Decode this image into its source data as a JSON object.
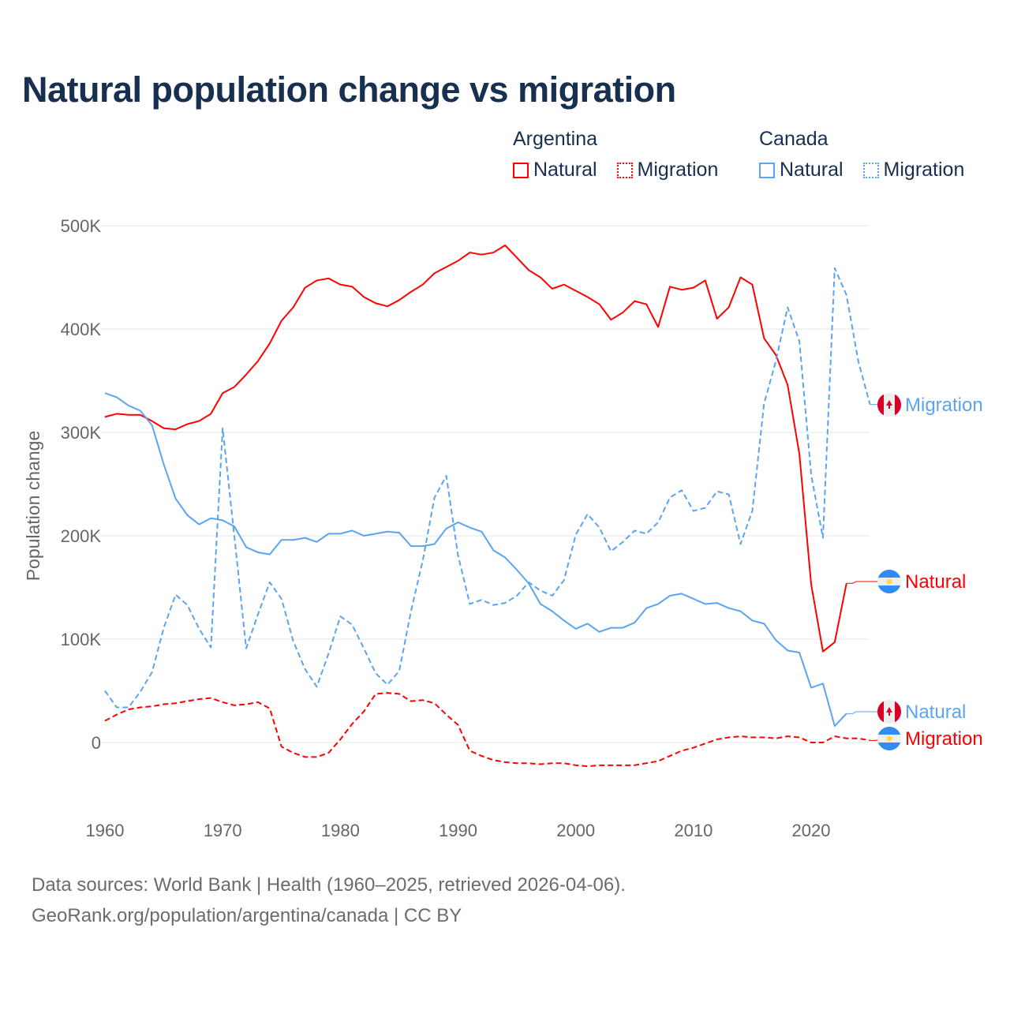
{
  "title": "Natural population change vs migration",
  "legend": {
    "groups": [
      {
        "name": "Argentina",
        "items": [
          {
            "label": "Natural",
            "style": "solid"
          },
          {
            "label": "Migration",
            "style": "dotted"
          }
        ],
        "color": "#ff0000"
      },
      {
        "name": "Canada",
        "items": [
          {
            "label": "Natural",
            "style": "solid"
          },
          {
            "label": "Migration",
            "style": "dotted"
          }
        ],
        "color": "#5ba4f0"
      }
    ]
  },
  "footer": {
    "line1": "Data sources: World Bank | Health (1960–2025, retrieved 2026-04-06).",
    "line2": "GeoRank.org/population/argentina/canada | CC BY"
  },
  "chart_data": {
    "type": "line",
    "title": "Natural population change vs migration",
    "xlabel": "",
    "ylabel": "Population change",
    "xlim": [
      1960,
      2025
    ],
    "ylim": [
      -60000,
      500000
    ],
    "xticks": [
      1960,
      1970,
      1980,
      1990,
      2000,
      2010,
      2020
    ],
    "yticks": [
      0,
      100000,
      200000,
      300000,
      400000,
      500000
    ],
    "ytick_labels": [
      "0",
      "100K",
      "200K",
      "300K",
      "400K",
      "500K"
    ],
    "grid": true,
    "x_start": 1960,
    "series": [
      {
        "name": "Argentina Natural",
        "country": "Argentina",
        "end_label": "Natural",
        "color": "#ff0000",
        "dash": false,
        "flag": "argentina-flag",
        "values": [
          315,
          318,
          317,
          317,
          311,
          304,
          303,
          308,
          311,
          318,
          338,
          344,
          356,
          369,
          386,
          408,
          421,
          440,
          447,
          449,
          443,
          441,
          431,
          425,
          422,
          428,
          436,
          443,
          454,
          460,
          466,
          474,
          472,
          474,
          481,
          469,
          457,
          450,
          439,
          443,
          437,
          431,
          424,
          409,
          416,
          427,
          424,
          402,
          441,
          438,
          440,
          447,
          410,
          421,
          450,
          443,
          391,
          375,
          346,
          279,
          153,
          88,
          97,
          154
        ]
      },
      {
        "name": "Argentina Migration",
        "country": "Argentina",
        "end_label": "Migration",
        "color": "#ff0000",
        "dash": true,
        "flag": "argentina-flag",
        "values": [
          21,
          27,
          32,
          34,
          35,
          37,
          38,
          40,
          42,
          43,
          39,
          36,
          37,
          39,
          33,
          -4,
          -10,
          -14,
          -14,
          -10,
          3,
          18,
          30,
          47,
          48,
          47,
          40,
          41,
          38,
          27,
          17,
          -8,
          -13,
          -17,
          -19,
          -20,
          -20,
          -21,
          -20,
          -20,
          -22,
          -23,
          -22,
          -22,
          -22,
          -22,
          -20,
          -18,
          -13,
          -8,
          -5,
          -1,
          3,
          5,
          6,
          5,
          5,
          4,
          6,
          5,
          0,
          0,
          6,
          4,
          4,
          2
        ]
      },
      {
        "name": "Canada Natural",
        "country": "Canada",
        "end_label": "Natural",
        "color": "#5ba4f0",
        "dash": false,
        "flag": "canada-flag",
        "values": [
          338,
          334,
          326,
          321,
          307,
          269,
          236,
          220,
          211,
          217,
          215,
          209,
          189,
          184,
          182,
          196,
          196,
          198,
          194,
          202,
          202,
          205,
          200,
          202,
          204,
          203,
          190,
          190,
          192,
          207,
          213,
          208,
          204,
          186,
          179,
          167,
          154,
          134,
          127,
          118,
          110,
          115,
          107,
          111,
          111,
          116,
          130,
          134,
          142,
          144,
          139,
          134,
          135,
          130,
          127,
          118,
          115,
          99,
          89,
          87,
          53,
          57,
          16,
          28
        ]
      },
      {
        "name": "Canada Migration",
        "country": "Canada",
        "end_label": "Migration",
        "color": "#5ba4f0",
        "dash": true,
        "flag": "canada-flag",
        "values": [
          50,
          34,
          34,
          49,
          68,
          111,
          143,
          133,
          110,
          92,
          304,
          199,
          91,
          124,
          155,
          139,
          98,
          71,
          54,
          86,
          122,
          114,
          91,
          67,
          56,
          69,
          127,
          176,
          237,
          258,
          181,
          134,
          138,
          133,
          135,
          142,
          155,
          147,
          142,
          157,
          201,
          221,
          208,
          185,
          194,
          205,
          202,
          213,
          237,
          244,
          224,
          227,
          243,
          240,
          192,
          224,
          328,
          369,
          421,
          388,
          259,
          198,
          459,
          433,
          369,
          327
        ]
      }
    ],
    "value_unit": "thousands"
  }
}
